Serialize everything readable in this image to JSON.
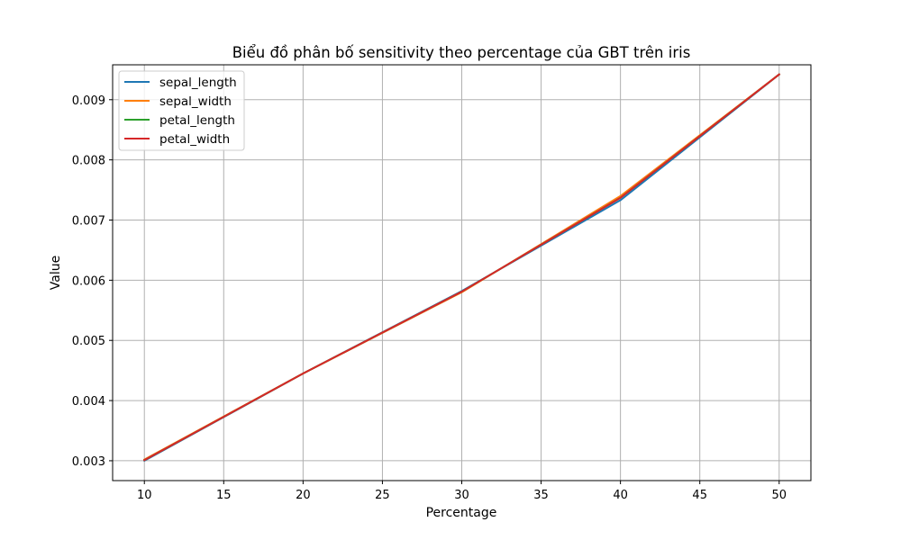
{
  "chart_data": {
    "type": "line",
    "title": "Biểu đồ phân bố sensitivity theo percentage của GBT trên iris",
    "xlabel": "Percentage",
    "ylabel": "Value",
    "x": [
      10,
      20,
      30,
      40,
      50
    ],
    "xlim": [
      8,
      52
    ],
    "ylim": [
      0.00267,
      0.00958
    ],
    "xticks": [
      "10",
      "15",
      "20",
      "25",
      "30",
      "35",
      "40",
      "45",
      "50"
    ],
    "yticks": [
      "0.003",
      "0.004",
      "0.005",
      "0.006",
      "0.007",
      "0.008",
      "0.009"
    ],
    "grid": true,
    "legend_position": "top-left",
    "series": [
      {
        "name": "sepal_length",
        "color": "#1f77b4",
        "values": [
          0.003,
          0.00445,
          0.00582,
          0.00733,
          0.00942
        ]
      },
      {
        "name": "sepal_width",
        "color": "#ff7f0e",
        "values": [
          0.00302,
          0.00445,
          0.0058,
          0.0074,
          0.00942
        ]
      },
      {
        "name": "petal_length",
        "color": "#2ca02c",
        "values": [
          0.00301,
          0.00445,
          0.00581,
          0.00737,
          0.00942
        ]
      },
      {
        "name": "petal_width",
        "color": "#d62728",
        "values": [
          0.00301,
          0.00445,
          0.00581,
          0.00737,
          0.00942
        ]
      }
    ]
  }
}
